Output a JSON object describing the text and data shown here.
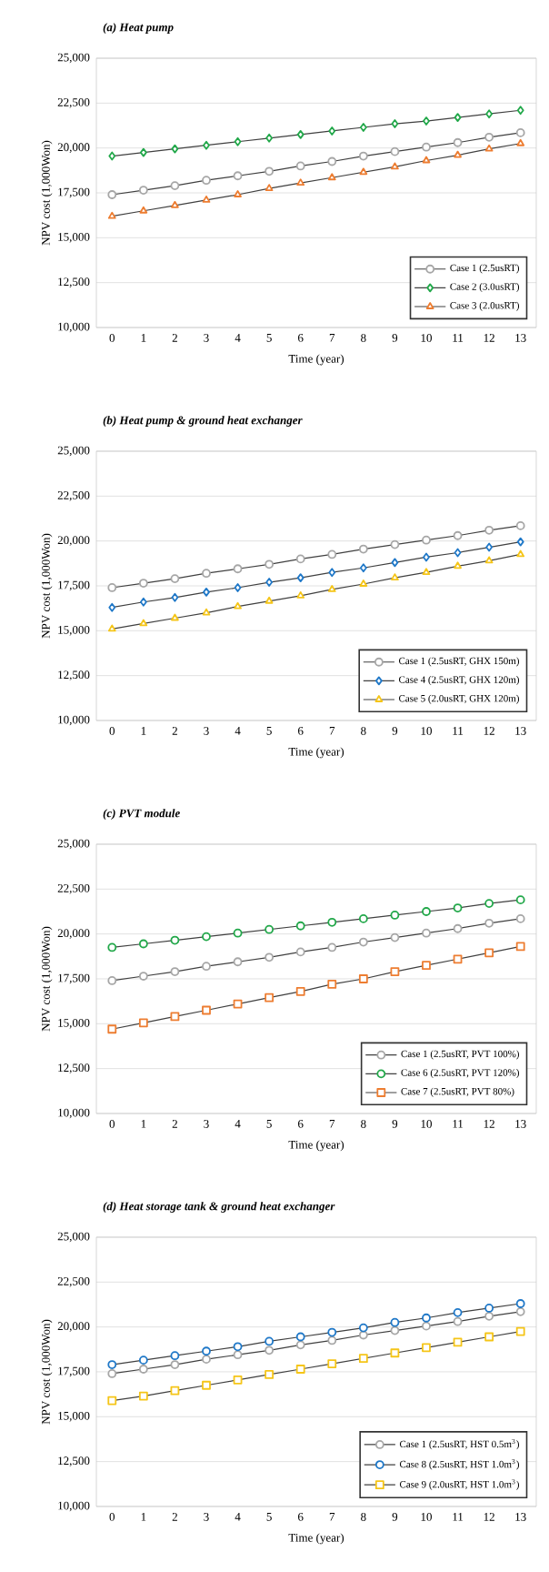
{
  "chart_data": [
    {
      "type": "line",
      "title": "(a) Heat pump",
      "xlabel": "Time (year)",
      "ylabel": "NPV cost (1,000Won)",
      "categories": [
        "0",
        "1",
        "2",
        "3",
        "4",
        "5",
        "6",
        "7",
        "8",
        "9",
        "10",
        "11",
        "12",
        "13"
      ],
      "ylim": [
        10000,
        25000
      ],
      "yticks": [
        {
          "value": 10000,
          "label": "10,000"
        },
        {
          "value": 12500,
          "label": "12,500"
        },
        {
          "value": 15000,
          "label": "15,000"
        },
        {
          "value": 17500,
          "label": "17,500"
        },
        {
          "value": 20000,
          "label": "20,000"
        },
        {
          "value": 22500,
          "label": "22,500"
        },
        {
          "value": 25000,
          "label": "25,000"
        }
      ],
      "grid": "y",
      "legend": "bottom right",
      "series": [
        {
          "name": "Case 1 (2.5usRT)",
          "color": "#a6a6a6",
          "marker": "circle",
          "values": [
            17400,
            17650,
            17900,
            18200,
            18450,
            18700,
            19000,
            19250,
            19550,
            19800,
            20050,
            20300,
            20600,
            20850
          ]
        },
        {
          "name": "Case 2 (3.0usRT)",
          "color": "#22a84a",
          "marker": "diamond",
          "values": [
            19550,
            19750,
            19950,
            20150,
            20350,
            20550,
            20750,
            20950,
            21150,
            21350,
            21500,
            21700,
            21900,
            22100
          ]
        },
        {
          "name": "Case 3 (2.0usRT)",
          "color": "#ed7d31",
          "marker": "triangle",
          "values": [
            16200,
            16500,
            16800,
            17100,
            17400,
            17750,
            18050,
            18350,
            18650,
            18950,
            19300,
            19600,
            19950,
            20250
          ]
        }
      ]
    },
    {
      "type": "line",
      "title": "(b) Heat pump & ground heat exchanger",
      "xlabel": "Time (year)",
      "ylabel": "NPV cost (1,000Won)",
      "categories": [
        "0",
        "1",
        "2",
        "3",
        "4",
        "5",
        "6",
        "7",
        "8",
        "9",
        "10",
        "11",
        "12",
        "13"
      ],
      "ylim": [
        10000,
        25000
      ],
      "yticks": [
        {
          "value": 10000,
          "label": "10,000"
        },
        {
          "value": 12500,
          "label": "12,500"
        },
        {
          "value": 15000,
          "label": "15,000"
        },
        {
          "value": 17500,
          "label": "17,500"
        },
        {
          "value": 20000,
          "label": "20,000"
        },
        {
          "value": 22500,
          "label": "22,500"
        },
        {
          "value": 25000,
          "label": "25,000"
        }
      ],
      "grid": "y",
      "legend": "bottom right",
      "series": [
        {
          "name": "Case 1 (2.5usRT, GHX 150m)",
          "color": "#a6a6a6",
          "marker": "circle",
          "values": [
            17400,
            17650,
            17900,
            18200,
            18450,
            18700,
            19000,
            19250,
            19550,
            19800,
            20050,
            20300,
            20600,
            20850
          ]
        },
        {
          "name": "Case 4 (2.5usRT, GHX 120m)",
          "color": "#1f78c8",
          "marker": "diamond",
          "values": [
            16300,
            16600,
            16850,
            17150,
            17400,
            17700,
            17950,
            18250,
            18500,
            18800,
            19100,
            19350,
            19650,
            19950
          ]
        },
        {
          "name": "Case 5 (2.0usRT, GHX 120m)",
          "color": "#f5c518",
          "marker": "triangle",
          "values": [
            15100,
            15400,
            15700,
            16000,
            16350,
            16650,
            16950,
            17300,
            17600,
            17950,
            18250,
            18600,
            18900,
            19250
          ]
        }
      ]
    },
    {
      "type": "line",
      "title": "(c) PVT module",
      "xlabel": "Time (year)",
      "ylabel": "NPV cost (1,000Won)",
      "categories": [
        "0",
        "1",
        "2",
        "3",
        "4",
        "5",
        "6",
        "7",
        "8",
        "9",
        "10",
        "11",
        "12",
        "13"
      ],
      "ylim": [
        10000,
        25000
      ],
      "yticks": [
        {
          "value": 10000,
          "label": "10,000"
        },
        {
          "value": 12500,
          "label": "12,500"
        },
        {
          "value": 15000,
          "label": "15,000"
        },
        {
          "value": 17500,
          "label": "17,500"
        },
        {
          "value": 20000,
          "label": "20,000"
        },
        {
          "value": 22500,
          "label": "22,500"
        },
        {
          "value": 25000,
          "label": "25,000"
        }
      ],
      "grid": "y",
      "legend": "bottom right",
      "series": [
        {
          "name": "Case 1 (2.5usRT, PVT 100%)",
          "color": "#a6a6a6",
          "marker": "circle",
          "values": [
            17400,
            17650,
            17900,
            18200,
            18450,
            18700,
            19000,
            19250,
            19550,
            19800,
            20050,
            20300,
            20600,
            20850
          ]
        },
        {
          "name": "Case 6 (2.5usRT, PVT 120%)",
          "color": "#22a84a",
          "marker": "circle",
          "values": [
            19250,
            19450,
            19650,
            19850,
            20050,
            20250,
            20450,
            20650,
            20850,
            21050,
            21250,
            21450,
            21700,
            21900
          ]
        },
        {
          "name": "Case 7 (2.5usRT, PVT 80%)",
          "color": "#ed7d31",
          "marker": "square",
          "values": [
            14700,
            15050,
            15400,
            15750,
            16100,
            16450,
            16800,
            17200,
            17500,
            17900,
            18250,
            18600,
            18950,
            19300
          ]
        }
      ]
    },
    {
      "type": "line",
      "title": "(d) Heat storage tank & ground heat exchanger",
      "xlabel": "Time (year)",
      "ylabel": "NPV cost (1,000Won)",
      "categories": [
        "0",
        "1",
        "2",
        "3",
        "4",
        "5",
        "6",
        "7",
        "8",
        "9",
        "10",
        "11",
        "12",
        "13"
      ],
      "ylim": [
        10000,
        25000
      ],
      "yticks": [
        {
          "value": 10000,
          "label": "10,000"
        },
        {
          "value": 12500,
          "label": "12,500"
        },
        {
          "value": 15000,
          "label": "15,000"
        },
        {
          "value": 17500,
          "label": "17,500"
        },
        {
          "value": 20000,
          "label": "20,000"
        },
        {
          "value": 22500,
          "label": "22,500"
        },
        {
          "value": 25000,
          "label": "25,000"
        }
      ],
      "grid": "y",
      "legend": "bottom right",
      "series": [
        {
          "name": "Case 1 (2.5usRT, HST 0.5m$^{3}$)",
          "color": "#a6a6a6",
          "marker": "circle",
          "values": [
            17400,
            17650,
            17900,
            18200,
            18450,
            18700,
            19000,
            19250,
            19550,
            19800,
            20050,
            20300,
            20600,
            20850
          ]
        },
        {
          "name": "Case 8 (2.5usRT, HST 1.0m$^{3}$)",
          "color": "#1f78c8",
          "marker": "circle",
          "values": [
            17900,
            18150,
            18400,
            18650,
            18900,
            19200,
            19450,
            19700,
            19950,
            20250,
            20500,
            20800,
            21050,
            21300
          ]
        },
        {
          "name": "Case 9 (2.0usRT, HST 1.0m$^{3}$)",
          "color": "#f5c518",
          "marker": "square",
          "values": [
            15900,
            16150,
            16450,
            16750,
            17050,
            17350,
            17650,
            17950,
            18250,
            18550,
            18850,
            19150,
            19450,
            19750
          ]
        }
      ]
    }
  ]
}
